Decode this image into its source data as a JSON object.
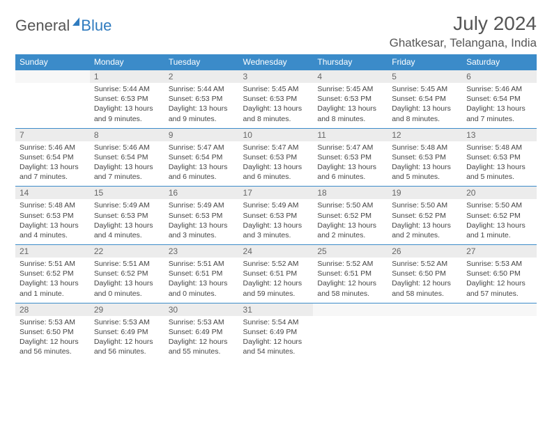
{
  "logo": {
    "text1": "General",
    "text2": "Blue"
  },
  "title": "July 2024",
  "location": "Ghatkesar, Telangana, India",
  "headers": [
    "Sunday",
    "Monday",
    "Tuesday",
    "Wednesday",
    "Thursday",
    "Friday",
    "Saturday"
  ],
  "colors": {
    "header_bg": "#3b8bc9",
    "header_text": "#ffffff",
    "daynum_bg": "#ececec",
    "border": "#3b8bc9",
    "text": "#444444"
  },
  "weeks": [
    [
      {
        "n": "",
        "sr": "",
        "ss": "",
        "dl": ""
      },
      {
        "n": "1",
        "sr": "Sunrise: 5:44 AM",
        "ss": "Sunset: 6:53 PM",
        "dl": "Daylight: 13 hours and 9 minutes."
      },
      {
        "n": "2",
        "sr": "Sunrise: 5:44 AM",
        "ss": "Sunset: 6:53 PM",
        "dl": "Daylight: 13 hours and 9 minutes."
      },
      {
        "n": "3",
        "sr": "Sunrise: 5:45 AM",
        "ss": "Sunset: 6:53 PM",
        "dl": "Daylight: 13 hours and 8 minutes."
      },
      {
        "n": "4",
        "sr": "Sunrise: 5:45 AM",
        "ss": "Sunset: 6:53 PM",
        "dl": "Daylight: 13 hours and 8 minutes."
      },
      {
        "n": "5",
        "sr": "Sunrise: 5:45 AM",
        "ss": "Sunset: 6:54 PM",
        "dl": "Daylight: 13 hours and 8 minutes."
      },
      {
        "n": "6",
        "sr": "Sunrise: 5:46 AM",
        "ss": "Sunset: 6:54 PM",
        "dl": "Daylight: 13 hours and 7 minutes."
      }
    ],
    [
      {
        "n": "7",
        "sr": "Sunrise: 5:46 AM",
        "ss": "Sunset: 6:54 PM",
        "dl": "Daylight: 13 hours and 7 minutes."
      },
      {
        "n": "8",
        "sr": "Sunrise: 5:46 AM",
        "ss": "Sunset: 6:54 PM",
        "dl": "Daylight: 13 hours and 7 minutes."
      },
      {
        "n": "9",
        "sr": "Sunrise: 5:47 AM",
        "ss": "Sunset: 6:54 PM",
        "dl": "Daylight: 13 hours and 6 minutes."
      },
      {
        "n": "10",
        "sr": "Sunrise: 5:47 AM",
        "ss": "Sunset: 6:53 PM",
        "dl": "Daylight: 13 hours and 6 minutes."
      },
      {
        "n": "11",
        "sr": "Sunrise: 5:47 AM",
        "ss": "Sunset: 6:53 PM",
        "dl": "Daylight: 13 hours and 6 minutes."
      },
      {
        "n": "12",
        "sr": "Sunrise: 5:48 AM",
        "ss": "Sunset: 6:53 PM",
        "dl": "Daylight: 13 hours and 5 minutes."
      },
      {
        "n": "13",
        "sr": "Sunrise: 5:48 AM",
        "ss": "Sunset: 6:53 PM",
        "dl": "Daylight: 13 hours and 5 minutes."
      }
    ],
    [
      {
        "n": "14",
        "sr": "Sunrise: 5:48 AM",
        "ss": "Sunset: 6:53 PM",
        "dl": "Daylight: 13 hours and 4 minutes."
      },
      {
        "n": "15",
        "sr": "Sunrise: 5:49 AM",
        "ss": "Sunset: 6:53 PM",
        "dl": "Daylight: 13 hours and 4 minutes."
      },
      {
        "n": "16",
        "sr": "Sunrise: 5:49 AM",
        "ss": "Sunset: 6:53 PM",
        "dl": "Daylight: 13 hours and 3 minutes."
      },
      {
        "n": "17",
        "sr": "Sunrise: 5:49 AM",
        "ss": "Sunset: 6:53 PM",
        "dl": "Daylight: 13 hours and 3 minutes."
      },
      {
        "n": "18",
        "sr": "Sunrise: 5:50 AM",
        "ss": "Sunset: 6:52 PM",
        "dl": "Daylight: 13 hours and 2 minutes."
      },
      {
        "n": "19",
        "sr": "Sunrise: 5:50 AM",
        "ss": "Sunset: 6:52 PM",
        "dl": "Daylight: 13 hours and 2 minutes."
      },
      {
        "n": "20",
        "sr": "Sunrise: 5:50 AM",
        "ss": "Sunset: 6:52 PM",
        "dl": "Daylight: 13 hours and 1 minute."
      }
    ],
    [
      {
        "n": "21",
        "sr": "Sunrise: 5:51 AM",
        "ss": "Sunset: 6:52 PM",
        "dl": "Daylight: 13 hours and 1 minute."
      },
      {
        "n": "22",
        "sr": "Sunrise: 5:51 AM",
        "ss": "Sunset: 6:52 PM",
        "dl": "Daylight: 13 hours and 0 minutes."
      },
      {
        "n": "23",
        "sr": "Sunrise: 5:51 AM",
        "ss": "Sunset: 6:51 PM",
        "dl": "Daylight: 13 hours and 0 minutes."
      },
      {
        "n": "24",
        "sr": "Sunrise: 5:52 AM",
        "ss": "Sunset: 6:51 PM",
        "dl": "Daylight: 12 hours and 59 minutes."
      },
      {
        "n": "25",
        "sr": "Sunrise: 5:52 AM",
        "ss": "Sunset: 6:51 PM",
        "dl": "Daylight: 12 hours and 58 minutes."
      },
      {
        "n": "26",
        "sr": "Sunrise: 5:52 AM",
        "ss": "Sunset: 6:50 PM",
        "dl": "Daylight: 12 hours and 58 minutes."
      },
      {
        "n": "27",
        "sr": "Sunrise: 5:53 AM",
        "ss": "Sunset: 6:50 PM",
        "dl": "Daylight: 12 hours and 57 minutes."
      }
    ],
    [
      {
        "n": "28",
        "sr": "Sunrise: 5:53 AM",
        "ss": "Sunset: 6:50 PM",
        "dl": "Daylight: 12 hours and 56 minutes."
      },
      {
        "n": "29",
        "sr": "Sunrise: 5:53 AM",
        "ss": "Sunset: 6:49 PM",
        "dl": "Daylight: 12 hours and 56 minutes."
      },
      {
        "n": "30",
        "sr": "Sunrise: 5:53 AM",
        "ss": "Sunset: 6:49 PM",
        "dl": "Daylight: 12 hours and 55 minutes."
      },
      {
        "n": "31",
        "sr": "Sunrise: 5:54 AM",
        "ss": "Sunset: 6:49 PM",
        "dl": "Daylight: 12 hours and 54 minutes."
      },
      {
        "n": "",
        "sr": "",
        "ss": "",
        "dl": ""
      },
      {
        "n": "",
        "sr": "",
        "ss": "",
        "dl": ""
      },
      {
        "n": "",
        "sr": "",
        "ss": "",
        "dl": ""
      }
    ]
  ]
}
